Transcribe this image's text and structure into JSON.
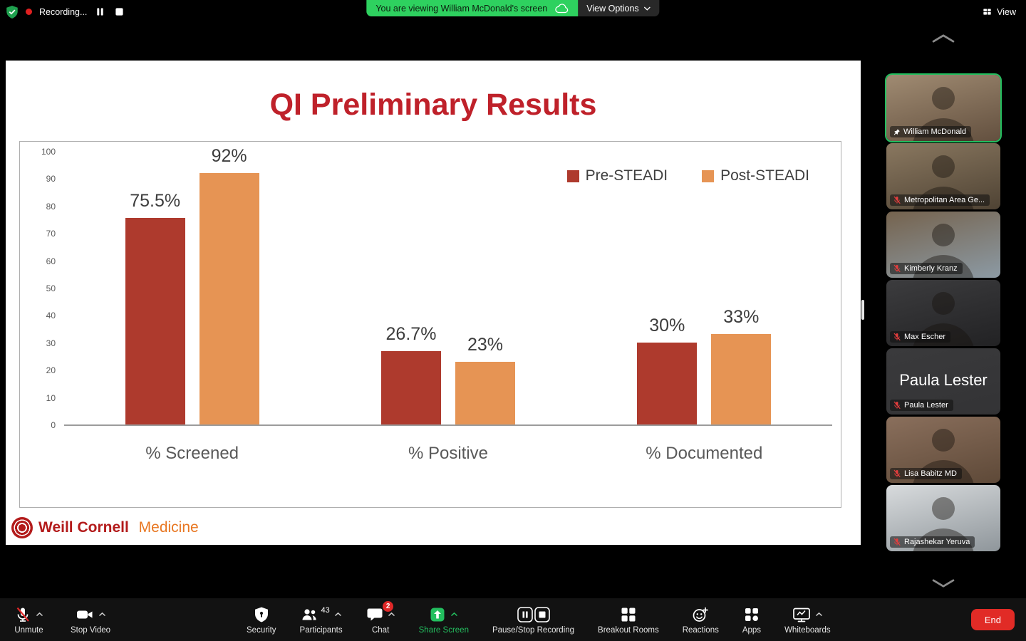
{
  "top_bar": {
    "recording_label": "Recording...",
    "banner_text": "You are viewing William McDonald's screen",
    "view_options_label": "View Options",
    "view_label": "View"
  },
  "slide": {
    "title": "QI Preliminary Results",
    "logo_primary": "Weill Cornell ",
    "logo_secondary": "Medicine"
  },
  "chart_data": {
    "type": "bar",
    "title": "QI Preliminary Results",
    "categories": [
      "% Screened",
      "% Positive",
      "% Documented"
    ],
    "series": [
      {
        "name": "Pre-STEADI",
        "color": "#ae3a2d",
        "values": [
          75.5,
          26.7,
          30
        ],
        "data_labels": [
          "75.5%",
          "26.7%",
          "30%"
        ]
      },
      {
        "name": "Post-STEADI",
        "color": "#e69454",
        "values": [
          92,
          23,
          33
        ],
        "data_labels": [
          "92%",
          "23%",
          "33%"
        ]
      }
    ],
    "xlabel": "",
    "ylabel": "",
    "ylim": [
      0,
      100
    ],
    "ytick_step": 10,
    "grid": false,
    "legend_position": "top-right"
  },
  "participants_panel": {
    "tiles": [
      {
        "name": "William McDonald",
        "pinned": true,
        "muted": false,
        "active_speaker": true,
        "bg": [
          "#a08b72",
          "#63503f"
        ]
      },
      {
        "name": "Metropolitan Area Ge...",
        "pinned": false,
        "muted": true,
        "active_speaker": false,
        "bg": [
          "#8a7860",
          "#4f4334"
        ]
      },
      {
        "name": "Kimberly Kranz",
        "pinned": false,
        "muted": true,
        "active_speaker": false,
        "bg": [
          "#75634e",
          "#8c9aa4"
        ]
      },
      {
        "name": "Max Escher",
        "pinned": false,
        "muted": true,
        "active_speaker": false,
        "bg": [
          "#3c3c3e",
          "#222224"
        ]
      },
      {
        "name": "Paula Lester",
        "pinned": false,
        "muted": true,
        "active_speaker": false,
        "bg": [
          "#3a3a3c",
          "#333335"
        ],
        "display_text": "Paula Lester"
      },
      {
        "name": "Lisa Babitz MD",
        "pinned": false,
        "muted": true,
        "active_speaker": false,
        "bg": [
          "#8a6f5c",
          "#5e4938"
        ]
      },
      {
        "name": "Rajashekar Yeruva",
        "pinned": false,
        "muted": true,
        "active_speaker": false,
        "bg": [
          "#d8dbdd",
          "#8f969b"
        ]
      }
    ]
  },
  "toolbar": {
    "left_items": [
      {
        "id": "unmute",
        "label": "Unmute",
        "icon": "mic-muted-icon",
        "caret": true
      },
      {
        "id": "stop-video",
        "label": "Stop Video",
        "icon": "camera-icon",
        "caret": true
      }
    ],
    "center_items": [
      {
        "id": "security",
        "label": "Security",
        "icon": "shield-icon"
      },
      {
        "id": "participants",
        "label": "Participants",
        "icon": "participants-icon",
        "caret": true,
        "count": "43"
      },
      {
        "id": "chat",
        "label": "Chat",
        "icon": "chat-icon",
        "caret": true,
        "badge": "2"
      },
      {
        "id": "share-screen",
        "label": "Share Screen",
        "icon": "share-screen-icon",
        "caret": true,
        "accent": "#23bf5f"
      },
      {
        "id": "pause-stop-recording",
        "label": "Pause/Stop Recording",
        "icon": "record-controls-icon"
      },
      {
        "id": "breakout-rooms",
        "label": "Breakout Rooms",
        "icon": "breakout-rooms-icon"
      },
      {
        "id": "reactions",
        "label": "Reactions",
        "icon": "reactions-icon"
      },
      {
        "id": "apps",
        "label": "Apps",
        "icon": "apps-icon"
      },
      {
        "id": "whiteboards",
        "label": "Whiteboards",
        "icon": "whiteboard-icon",
        "caret": true
      }
    ],
    "end_label": "End"
  },
  "colors": {
    "banner_green": "#2ed15f",
    "accent_green": "#23bf5f",
    "end_red": "#e12b26",
    "badge_red": "#e02828",
    "title_red": "#bf212a",
    "brand_red": "#b31b1b",
    "brand_orange": "#e87722"
  }
}
